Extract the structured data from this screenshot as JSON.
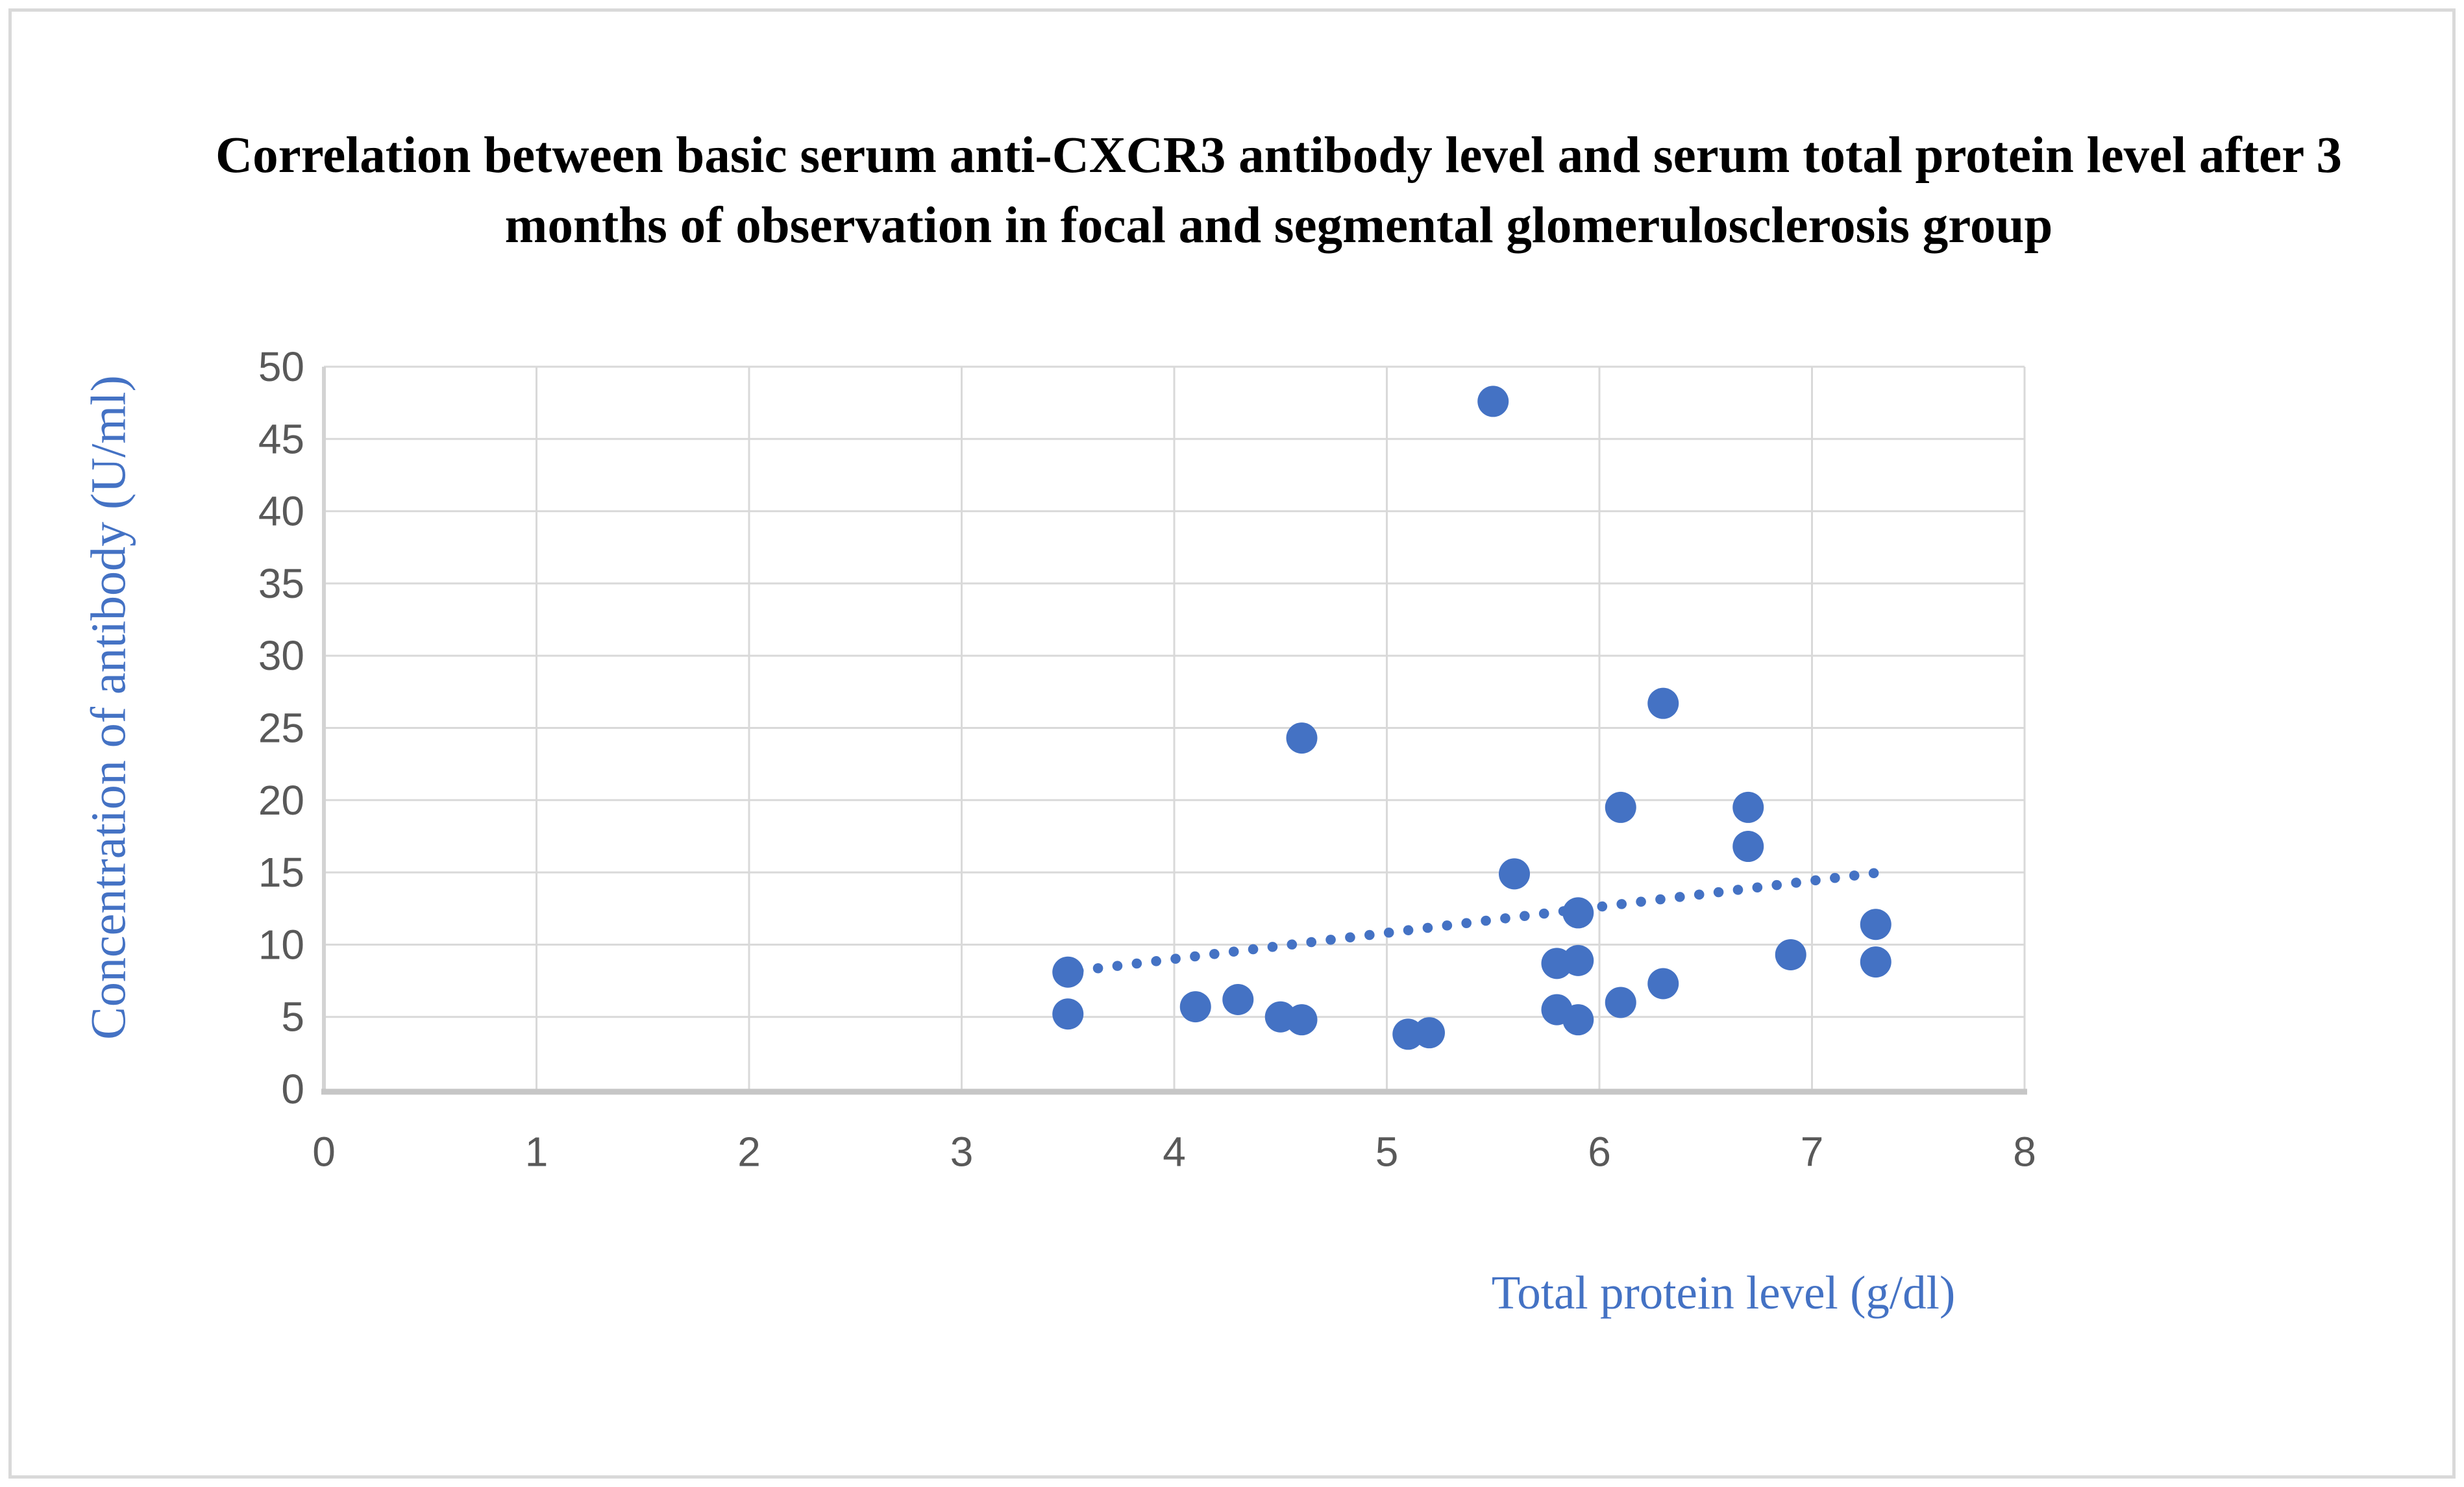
{
  "chart_data": {
    "type": "scatter",
    "title": "Correlation between basic serum anti-CXCR3 antibody level and serum total protein level after 3 months of observation in focal and segmental glomerulosclerosis group",
    "xlabel": "Total protein level (g/dl)",
    "ylabel": "Concentration of antibody (U/ml)",
    "xlim": [
      0,
      8
    ],
    "ylim": [
      0,
      50
    ],
    "x_ticks": [
      0,
      1,
      2,
      3,
      4,
      5,
      6,
      7,
      8
    ],
    "y_ticks": [
      0,
      5,
      10,
      15,
      20,
      25,
      30,
      35,
      40,
      45,
      50
    ],
    "grid": true,
    "legend": false,
    "series": [
      {
        "points": [
          [
            3.5,
            5.2
          ],
          [
            3.5,
            8.1
          ],
          [
            4.1,
            5.7
          ],
          [
            4.3,
            6.2
          ],
          [
            4.5,
            5.0
          ],
          [
            4.6,
            4.8
          ],
          [
            4.6,
            24.3
          ],
          [
            5.1,
            3.8
          ],
          [
            5.2,
            3.9
          ],
          [
            5.5,
            47.6
          ],
          [
            5.6,
            14.9
          ],
          [
            5.8,
            5.5
          ],
          [
            5.8,
            8.7
          ],
          [
            5.9,
            4.8
          ],
          [
            5.9,
            8.9
          ],
          [
            5.9,
            12.2
          ],
          [
            6.1,
            6.0
          ],
          [
            6.1,
            19.5
          ],
          [
            6.3,
            7.3
          ],
          [
            6.3,
            26.7
          ],
          [
            6.7,
            16.8
          ],
          [
            6.7,
            19.5
          ],
          [
            6.9,
            9.3
          ],
          [
            7.3,
            8.8
          ],
          [
            7.3,
            11.4
          ]
        ]
      }
    ],
    "trendline": {
      "style": "dotted",
      "start": [
        3.55,
        8.2
      ],
      "end": [
        7.32,
        15.0
      ]
    },
    "colors": {
      "marker": "#4472C4",
      "trendline": "#4472C4",
      "gridline": "#D9D9D9",
      "axis_line": "#C6C6C6",
      "tick_label": "#595959",
      "axis_title": "#4472C4",
      "title": "#000000",
      "border": "#D9D9D9"
    }
  }
}
